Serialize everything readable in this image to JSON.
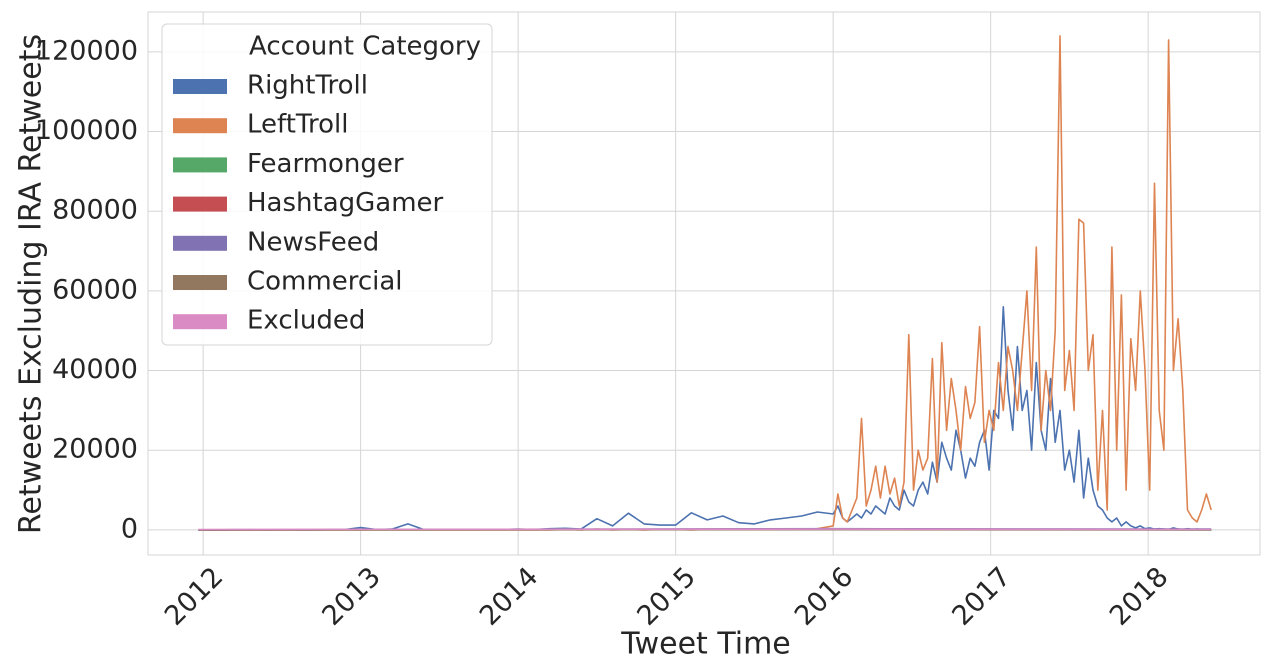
{
  "chart_data": {
    "type": "line",
    "x_label": "Tweet Time",
    "y_label": "Retweets Excluding IRA Retweets",
    "legend_title": "Account Category",
    "legend_position": "upper left",
    "grid": true,
    "xlim": [
      2011.65,
      2018.71
    ],
    "xticks": [
      2012,
      2013,
      2014,
      2015,
      2016,
      2017,
      2018
    ],
    "ylim": [
      -6300,
      130000
    ],
    "yticks": [
      0,
      20000,
      40000,
      60000,
      80000,
      100000,
      120000
    ],
    "x": [
      2012,
      2012.1,
      2012.2,
      2012.3,
      2012.4,
      2012.5,
      2012.6,
      2012.7,
      2012.8,
      2012.9,
      2013,
      2013.1,
      2013.2,
      2013.3,
      2013.4,
      2013.5,
      2013.6,
      2013.7,
      2013.8,
      2013.9,
      2014,
      2014.1,
      2014.2,
      2014.3,
      2014.4,
      2014.5,
      2014.6,
      2014.7,
      2014.8,
      2014.9,
      2015,
      2015.1,
      2015.2,
      2015.3,
      2015.4,
      2015.5,
      2015.6,
      2015.7,
      2015.8,
      2015.9,
      2016,
      2016.03,
      2016.06,
      2016.09,
      2016.12,
      2016.15,
      2016.18,
      2016.21,
      2016.24,
      2016.27,
      2016.3,
      2016.33,
      2016.36,
      2016.39,
      2016.42,
      2016.45,
      2016.48,
      2016.51,
      2016.54,
      2016.57,
      2016.6,
      2016.63,
      2016.66,
      2016.69,
      2016.72,
      2016.75,
      2016.78,
      2016.81,
      2016.84,
      2016.87,
      2016.9,
      2016.93,
      2016.96,
      2016.99,
      2017.02,
      2017.05,
      2017.08,
      2017.11,
      2017.14,
      2017.17,
      2017.2,
      2017.23,
      2017.26,
      2017.29,
      2017.32,
      2017.35,
      2017.38,
      2017.41,
      2017.44,
      2017.47,
      2017.5,
      2017.53,
      2017.56,
      2017.59,
      2017.62,
      2017.65,
      2017.68,
      2017.71,
      2017.74,
      2017.77,
      2017.8,
      2017.83,
      2017.86,
      2017.89,
      2017.92,
      2017.95,
      2017.98,
      2018.01,
      2018.04,
      2018.07,
      2018.1,
      2018.13,
      2018.16,
      2018.19,
      2018.22,
      2018.25,
      2018.28,
      2018.31,
      2018.34,
      2018.37,
      2018.4
    ],
    "series": [
      {
        "name": "RightTroll",
        "color": "#4c72b0",
        "values": [
          0,
          0,
          50,
          50,
          0,
          50,
          0,
          0,
          50,
          100,
          600,
          100,
          200,
          1500,
          100,
          100,
          100,
          100,
          100,
          100,
          200,
          100,
          300,
          400,
          200,
          2800,
          1000,
          4200,
          1500,
          1200,
          1200,
          4300,
          2500,
          3500,
          1800,
          1500,
          2500,
          3000,
          3500,
          4500,
          4000,
          6000,
          3000,
          2000,
          3000,
          4000,
          3000,
          5000,
          4000,
          6000,
          5000,
          4000,
          8000,
          6000,
          5000,
          10000,
          7000,
          6000,
          10000,
          12000,
          9000,
          17000,
          12000,
          22000,
          18000,
          15000,
          25000,
          20000,
          13000,
          18000,
          16000,
          22000,
          25000,
          15000,
          30000,
          28000,
          56000,
          35000,
          25000,
          46000,
          30000,
          35000,
          20000,
          42000,
          25000,
          20000,
          38000,
          22000,
          30000,
          15000,
          20000,
          12000,
          25000,
          8000,
          18000,
          10000,
          6000,
          5000,
          3000,
          2000,
          3000,
          1000,
          2000,
          1000,
          500,
          1000,
          300,
          500,
          200,
          300,
          200,
          100,
          500,
          200,
          100,
          300,
          100,
          200,
          100,
          100,
          0
        ]
      },
      {
        "name": "LeftTroll",
        "color": "#dd8452",
        "values": [
          0,
          0,
          0,
          0,
          0,
          0,
          0,
          0,
          0,
          0,
          0,
          0,
          0,
          0,
          0,
          0,
          0,
          0,
          0,
          0,
          0,
          0,
          0,
          100,
          0,
          200,
          0,
          100,
          0,
          100,
          100,
          0,
          100,
          200,
          100,
          100,
          200,
          100,
          200,
          300,
          1000,
          9000,
          3000,
          2000,
          5000,
          8000,
          28000,
          6000,
          10000,
          16000,
          8000,
          16000,
          9000,
          13000,
          6000,
          12000,
          49000,
          10000,
          20000,
          15000,
          18000,
          43000,
          12000,
          47000,
          25000,
          38000,
          30000,
          20000,
          36000,
          28000,
          32000,
          51000,
          22000,
          30000,
          25000,
          42000,
          30000,
          46000,
          40000,
          30000,
          45000,
          60000,
          35000,
          71000,
          25000,
          40000,
          30000,
          50000,
          124000,
          35000,
          45000,
          30000,
          78000,
          77000,
          40000,
          49000,
          10000,
          30000,
          5000,
          71000,
          20000,
          59000,
          10000,
          48000,
          35000,
          60000,
          40000,
          10000,
          87000,
          30000,
          20000,
          123000,
          40000,
          53000,
          35000,
          5000,
          3000,
          2000,
          5000,
          9000,
          5000
        ]
      },
      {
        "name": "Fearmonger",
        "color": "#55a868",
        "x": [
          2011.97,
          2016,
          2018.4
        ],
        "values": [
          0,
          100,
          0
        ]
      },
      {
        "name": "HashtagGamer",
        "color": "#c44e52",
        "x": [
          2011.97,
          2016,
          2018.4
        ],
        "values": [
          0,
          200,
          100
        ]
      },
      {
        "name": "NewsFeed",
        "color": "#8172b3",
        "x": [
          2011.97,
          2016,
          2018.4
        ],
        "values": [
          0,
          300,
          200
        ]
      },
      {
        "name": "Commercial",
        "color": "#937860",
        "x": [
          2011.97,
          2016,
          2018.4
        ],
        "values": [
          0,
          50,
          0
        ]
      },
      {
        "name": "Excluded",
        "color": "#da8bc3",
        "x": [
          2011.97,
          2016,
          2018.4
        ],
        "values": [
          100,
          200,
          100
        ]
      }
    ]
  }
}
